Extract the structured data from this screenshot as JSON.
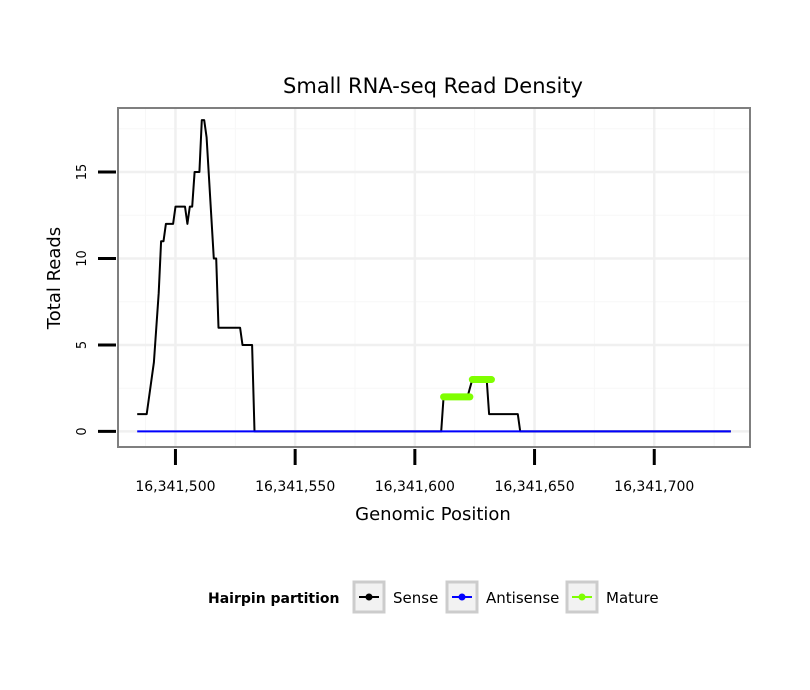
{
  "chart_data": {
    "type": "line",
    "title": "Small RNA-seq Read Density",
    "xlabel": "Genomic Position",
    "ylabel": "Total Reads",
    "xlim": [
      16341476,
      16341740
    ],
    "ylim": [
      -0.9,
      18.7
    ],
    "x_ticks": [
      16341500,
      16341550,
      16341600,
      16341650,
      16341700
    ],
    "x_tick_labels": [
      "16,341,500",
      "16,341,550",
      "16,341,600",
      "16,341,650",
      "16,341,700"
    ],
    "y_ticks": [
      0,
      5,
      10,
      15
    ],
    "y_tick_labels": [
      "0",
      "5",
      "10",
      "15"
    ],
    "legend": {
      "title": "Hairpin partition",
      "position": "bottom",
      "entries": [
        {
          "label": "Sense",
          "color": "#000000"
        },
        {
          "label": "Antisense",
          "color": "#0000ff"
        },
        {
          "label": "Mature",
          "color": "#7fff00"
        }
      ]
    },
    "series": [
      {
        "name": "Sense",
        "color": "#000000",
        "points": [
          [
            16341484,
            1
          ],
          [
            16341488,
            1
          ],
          [
            16341491,
            4
          ],
          [
            16341493,
            8
          ],
          [
            16341494,
            11
          ],
          [
            16341495,
            11
          ],
          [
            16341496,
            12
          ],
          [
            16341499,
            12
          ],
          [
            16341500,
            13
          ],
          [
            16341504,
            13
          ],
          [
            16341505,
            12
          ],
          [
            16341506,
            13
          ],
          [
            16341507,
            13
          ],
          [
            16341508,
            15
          ],
          [
            16341510,
            15
          ],
          [
            16341511,
            18
          ],
          [
            16341512,
            18
          ],
          [
            16341513,
            17
          ],
          [
            16341516,
            10
          ],
          [
            16341517,
            10
          ],
          [
            16341518,
            6
          ],
          [
            16341527,
            6
          ],
          [
            16341528,
            5
          ],
          [
            16341532,
            5
          ],
          [
            16341533,
            0
          ],
          [
            16341611,
            0
          ],
          [
            16341612,
            2
          ],
          [
            16341622,
            2
          ],
          [
            16341624,
            3
          ],
          [
            16341630,
            3
          ],
          [
            16341631,
            1
          ],
          [
            16341643,
            1
          ],
          [
            16341644,
            0
          ],
          [
            16341732,
            0
          ]
        ]
      },
      {
        "name": "Antisense",
        "color": "#0000ff",
        "points": [
          [
            16341484,
            0
          ],
          [
            16341732,
            0
          ]
        ]
      },
      {
        "name": "Mature",
        "color": "#7fff00",
        "segments": [
          {
            "x": [
              16341612,
              16341623
            ],
            "y": 2
          },
          {
            "x": [
              16341624,
              16341632
            ],
            "y": 3
          }
        ]
      }
    ]
  }
}
